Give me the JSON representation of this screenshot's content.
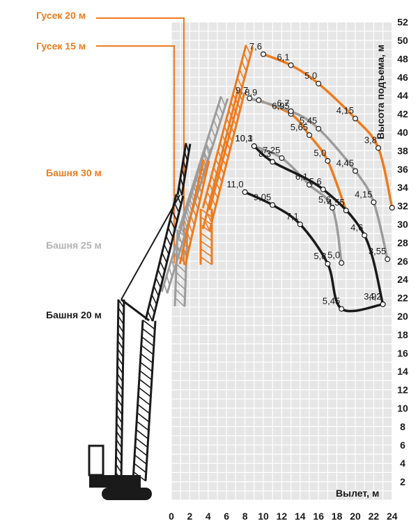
{
  "colors": {
    "orange": "#ee7b1e",
    "gray": "#9c9c9c",
    "black": "#1a1a1a",
    "grid_bg": "#e6e6e6",
    "grid_line": "#ffffff"
  },
  "jib_labels": [
    {
      "key": "jib20",
      "text": "Гусек 20 м",
      "color": "#ee7b1e"
    },
    {
      "key": "jib15",
      "text": "Гусек 15 м",
      "color": "#ee7b1e"
    }
  ],
  "tower_labels": [
    {
      "key": "tower30",
      "text": "Башня 30 м",
      "color": "#ee7b1e"
    },
    {
      "key": "tower25",
      "text": "Башня 25 м",
      "color": "#b3b3b3"
    },
    {
      "key": "tower20",
      "text": "Башня 20 м",
      "color": "#1a1a1a"
    }
  ],
  "axis": {
    "xlabel": "Вылет, м",
    "ylabel": "Высота подъема, м",
    "x_ticks": [
      0,
      2,
      4,
      6,
      8,
      10,
      12,
      14,
      16,
      18,
      20,
      22,
      24
    ],
    "y_ticks": [
      2,
      4,
      6,
      8,
      10,
      12,
      14,
      16,
      18,
      20,
      22,
      24,
      26,
      28,
      30,
      32,
      34,
      36,
      38,
      40,
      42,
      44,
      46,
      48,
      50,
      52
    ],
    "xlim": [
      0,
      24
    ],
    "ylim": [
      0,
      52
    ]
  },
  "chart_data": {
    "type": "line",
    "xlabel": "Вылет, м",
    "ylabel": "Высота подъема, м",
    "xlim": [
      0,
      24
    ],
    "ylim": [
      0,
      52
    ],
    "series": [
      {
        "color": "#ee7b1e",
        "points": [
          {
            "x": 10.0,
            "y": 48.5,
            "label": "7,6"
          },
          {
            "x": 13.0,
            "y": 47.3,
            "label": "6,1"
          },
          {
            "x": 16.0,
            "y": 45.3,
            "label": "5,0"
          },
          {
            "x": 20.0,
            "y": 41.5,
            "label": "4,15"
          },
          {
            "x": 22.5,
            "y": 38.3,
            "label": "3,8"
          },
          {
            "x": 24.0,
            "y": 31.8,
            "label": ""
          }
        ]
      },
      {
        "color": "#ee7b1e",
        "points": [
          {
            "x": 9.5,
            "y": 43.5,
            "label": "8,9"
          },
          {
            "x": 13.0,
            "y": 42.0,
            "label": "6,95"
          },
          {
            "x": 15.0,
            "y": 39.7,
            "label": "5,65"
          },
          {
            "x": 17.0,
            "y": 36.9,
            "label": "5,0"
          },
          {
            "x": 19.0,
            "y": 31.5,
            "label": "4,55"
          }
        ]
      },
      {
        "color": "#9c9c9c",
        "points": [
          {
            "x": 8.5,
            "y": 43.7,
            "label": "9,7"
          },
          {
            "x": 13.0,
            "y": 42.3,
            "label": "6,7"
          },
          {
            "x": 16.0,
            "y": 40.4,
            "label": "5,45"
          },
          {
            "x": 20.0,
            "y": 35.8,
            "label": "4,45"
          },
          {
            "x": 22.0,
            "y": 32.4,
            "label": "4,15"
          },
          {
            "x": 23.5,
            "y": 26.2,
            "label": "3,55"
          }
        ]
      },
      {
        "color": "#9c9c9c",
        "points": [
          {
            "x": 9.0,
            "y": 38.5,
            "label": "10,3"
          },
          {
            "x": 12.0,
            "y": 37.2,
            "label": "7,25"
          },
          {
            "x": 15.0,
            "y": 34.3,
            "label": "6,1"
          },
          {
            "x": 17.5,
            "y": 31.8,
            "label": "5,6"
          },
          {
            "x": 18.5,
            "y": 25.8,
            "label": "5,0"
          }
        ]
      },
      {
        "color": "#1a1a1a",
        "points": [
          {
            "x": 9.0,
            "y": 38.5,
            "label": "10,1"
          },
          {
            "x": 11.0,
            "y": 36.8,
            "label": "8,3"
          },
          {
            "x": 16.5,
            "y": 33.8,
            "label": "5,6"
          },
          {
            "x": 21.0,
            "y": 28.8,
            "label": "4,6"
          },
          {
            "x": 23.0,
            "y": 21.3,
            "label": "3,92"
          }
        ]
      },
      {
        "color": "#1a1a1a",
        "points": [
          {
            "x": 8.0,
            "y": 33.5,
            "label": "11,0"
          },
          {
            "x": 11.0,
            "y": 32.1,
            "label": "9,05"
          },
          {
            "x": 14.0,
            "y": 30.0,
            "label": "7,1"
          },
          {
            "x": 17.0,
            "y": 25.7,
            "label": "5,8"
          },
          {
            "x": 18.5,
            "y": 20.8,
            "label": "5,45"
          },
          {
            "x": 23.0,
            "y": 21.3,
            "label": "4,2"
          }
        ]
      }
    ]
  }
}
